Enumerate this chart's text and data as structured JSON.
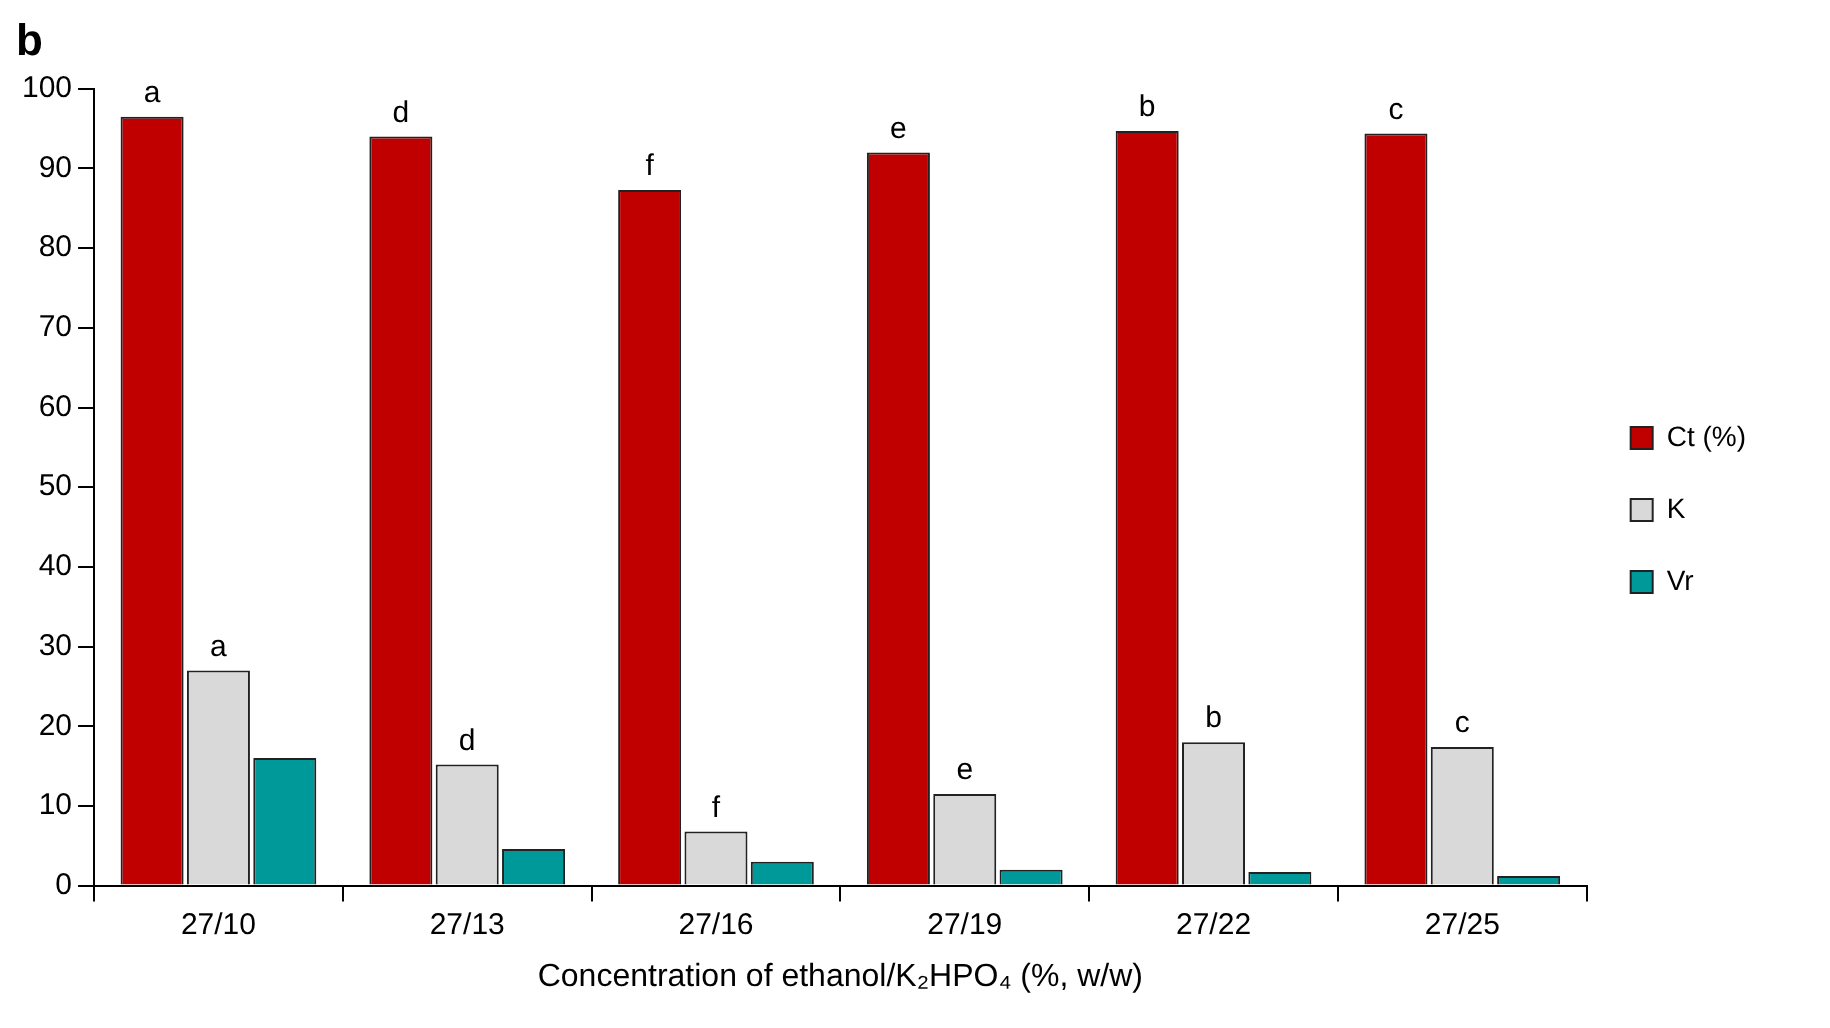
{
  "chart_data": {
    "type": "bar",
    "title": "b",
    "xlabel": "Concentration of ethanol/K₂HPO₄ (%, w/w)",
    "categories": [
      "27/10",
      "27/13",
      "27/16",
      "27/19",
      "27/22",
      "27/25"
    ],
    "series": [
      {
        "name": "Ct (%)",
        "color": "#c00000",
        "values": [
          96.5,
          94,
          87.3,
          92,
          94.7,
          94.4
        ]
      },
      {
        "name": "K",
        "color": "#d9d9d9",
        "values": [
          27,
          15.2,
          6.8,
          11.5,
          18,
          17.4
        ]
      },
      {
        "name": "Vr",
        "color": "#009999",
        "values": [
          16,
          4.6,
          3,
          2,
          1.7,
          1.2
        ]
      }
    ],
    "ylim": [
      0,
      100
    ],
    "yticks": [
      0,
      10,
      20,
      30,
      40,
      50,
      60,
      70,
      80,
      90,
      100
    ],
    "grid": false,
    "legend": "right",
    "annotations": [
      "a",
      "d",
      "f",
      "e",
      "b",
      "c",
      {
        "text": "a",
        "x": "27/10",
        "y": 27
      },
      {
        "text": "d",
        "x": "27/13",
        "y": 15.2
      },
      {
        "text": "f",
        "x": "27/16",
        "y": 6.8
      },
      {
        "text": "e",
        "x": "27/19",
        "y": 11.5
      },
      {
        "text": "b",
        "x": "27/22",
        "y": 18
      },
      {
        "text": "c",
        "x": "27/25",
        "y": 17.4
      }
    ]
  }
}
